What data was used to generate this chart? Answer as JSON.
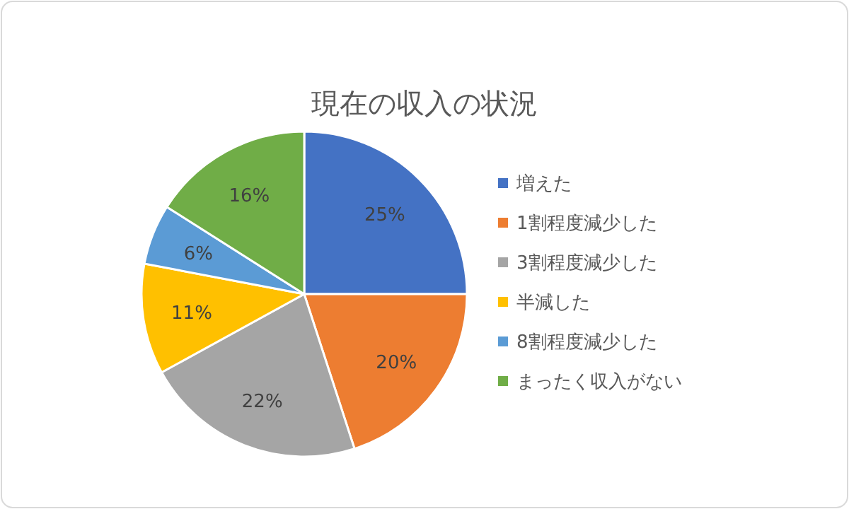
{
  "chart_data": {
    "type": "pie",
    "title": "現在の収入の状況",
    "categories": [
      "増えた",
      "1割程度減少した",
      "3割程度減少した",
      "半減した",
      "8割程度減少した",
      "まったく収入がない"
    ],
    "values": [
      25,
      20,
      22,
      11,
      6,
      16
    ],
    "colors": [
      "#4472c4",
      "#ed7d31",
      "#a5a5a5",
      "#ffc000",
      "#5b9bd5",
      "#70ad47"
    ],
    "value_labels": [
      "25%",
      "20%",
      "22%",
      "11%",
      "6%",
      "16%"
    ],
    "legend": "right"
  }
}
